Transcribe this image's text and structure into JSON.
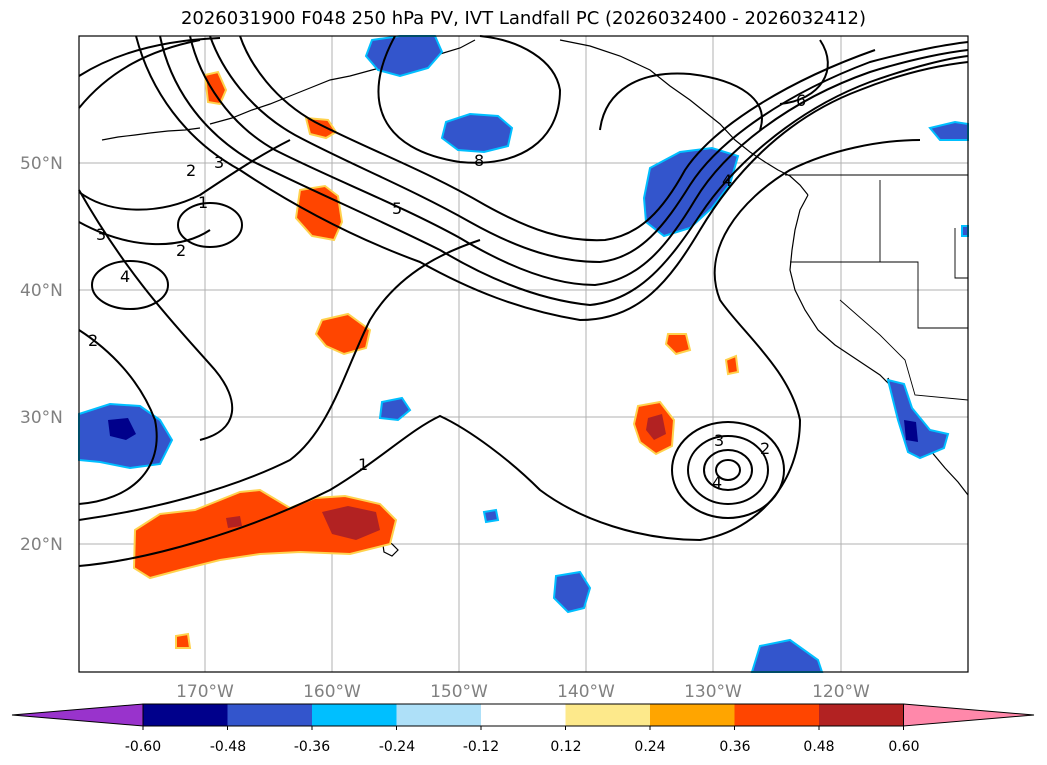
{
  "title": "2026031900 F048 250 hPa PV, IVT Landfall PC (2026032400 - 2026032412)",
  "lat_labels": [
    "50°N",
    "40°N",
    "30°N",
    "20°N"
  ],
  "lon_labels": [
    "170°W",
    "160°W",
    "150°W",
    "140°W",
    "130°W",
    "120°W"
  ],
  "contour_labels": [
    "3",
    "2",
    "1",
    "3",
    "4",
    "2",
    "2",
    "5",
    "8",
    "6",
    "4",
    "1",
    "3",
    "2",
    "4"
  ],
  "colorbar": {
    "ticks": [
      "-0.60",
      "-0.48",
      "-0.36",
      "-0.24",
      "-0.12",
      "0.12",
      "0.24",
      "0.36",
      "0.48",
      "0.60"
    ],
    "colors": [
      "#9933cc",
      "#00008b",
      "#3355cc",
      "#00bfff",
      "#aee0f8",
      "#ffffff",
      "#fde98b",
      "#ffa500",
      "#ff4500",
      "#b22222",
      "#ff88aa"
    ]
  },
  "colors": {
    "positive_anomaly": "#ff4500",
    "strong_positive": "#b22222",
    "negative_anomaly": "#3355cc",
    "strong_negative": "#00008b",
    "grid": "#b0b0b0"
  }
}
